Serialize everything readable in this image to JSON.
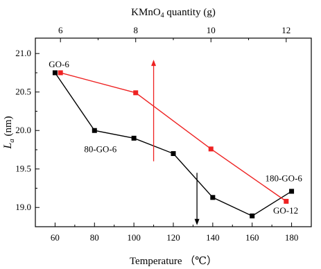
{
  "chart_data": {
    "type": "line",
    "title": "",
    "xlabel": "Temperature （℃）",
    "x2label": "KMnO4 quantity (g)",
    "ylabel": "La (nm)",
    "ylabel_main": "L",
    "ylabel_sub": "a",
    "ylabel_unit": " (nm)",
    "x2label_parts": {
      "pre": "KMnO",
      "sub": "4",
      "post": " quantity (g)"
    },
    "xlim": [
      50,
      190
    ],
    "x2lim": [
      5.333,
      12.667
    ],
    "ylim": [
      18.75,
      21.2
    ],
    "x_ticks": [
      "60",
      "80",
      "100",
      "120",
      "140",
      "160",
      "180"
    ],
    "x2_ticks": [
      "6",
      "8",
      "10",
      "12"
    ],
    "y_ticks": [
      "19.0",
      "19.5",
      "20.0",
      "20.5",
      "21.0"
    ],
    "grid": false,
    "legend": "none",
    "series": [
      {
        "axis": "bottom",
        "color": "#000000",
        "x": [
          60,
          80,
          100,
          120,
          140,
          160,
          180
        ],
        "y": [
          20.75,
          20.0,
          19.9,
          19.7,
          19.13,
          18.89,
          19.21
        ]
      },
      {
        "axis": "top",
        "color": "#ee2222",
        "x": [
          6,
          8,
          10,
          12
        ],
        "y": [
          20.75,
          20.49,
          19.76,
          19.08
        ]
      }
    ],
    "annotations": [
      {
        "text": "GO-6",
        "x": 62,
        "y": 20.82,
        "anchor": "middle"
      },
      {
        "text": "80-GO-6",
        "x": 83,
        "y": 19.72,
        "anchor": "middle"
      },
      {
        "text": "180-GO-6",
        "x": 176,
        "y": 19.34,
        "anchor": "middle"
      },
      {
        "text": "GO-12",
        "x": 177,
        "y": 18.92,
        "anchor": "middle"
      }
    ],
    "arrows": [
      {
        "color": "#ee2222",
        "x": 110,
        "y_from": 19.6,
        "y_to": 20.92
      },
      {
        "color": "#000000",
        "x": 132,
        "y_from": 19.45,
        "y_to": 18.77
      }
    ]
  }
}
